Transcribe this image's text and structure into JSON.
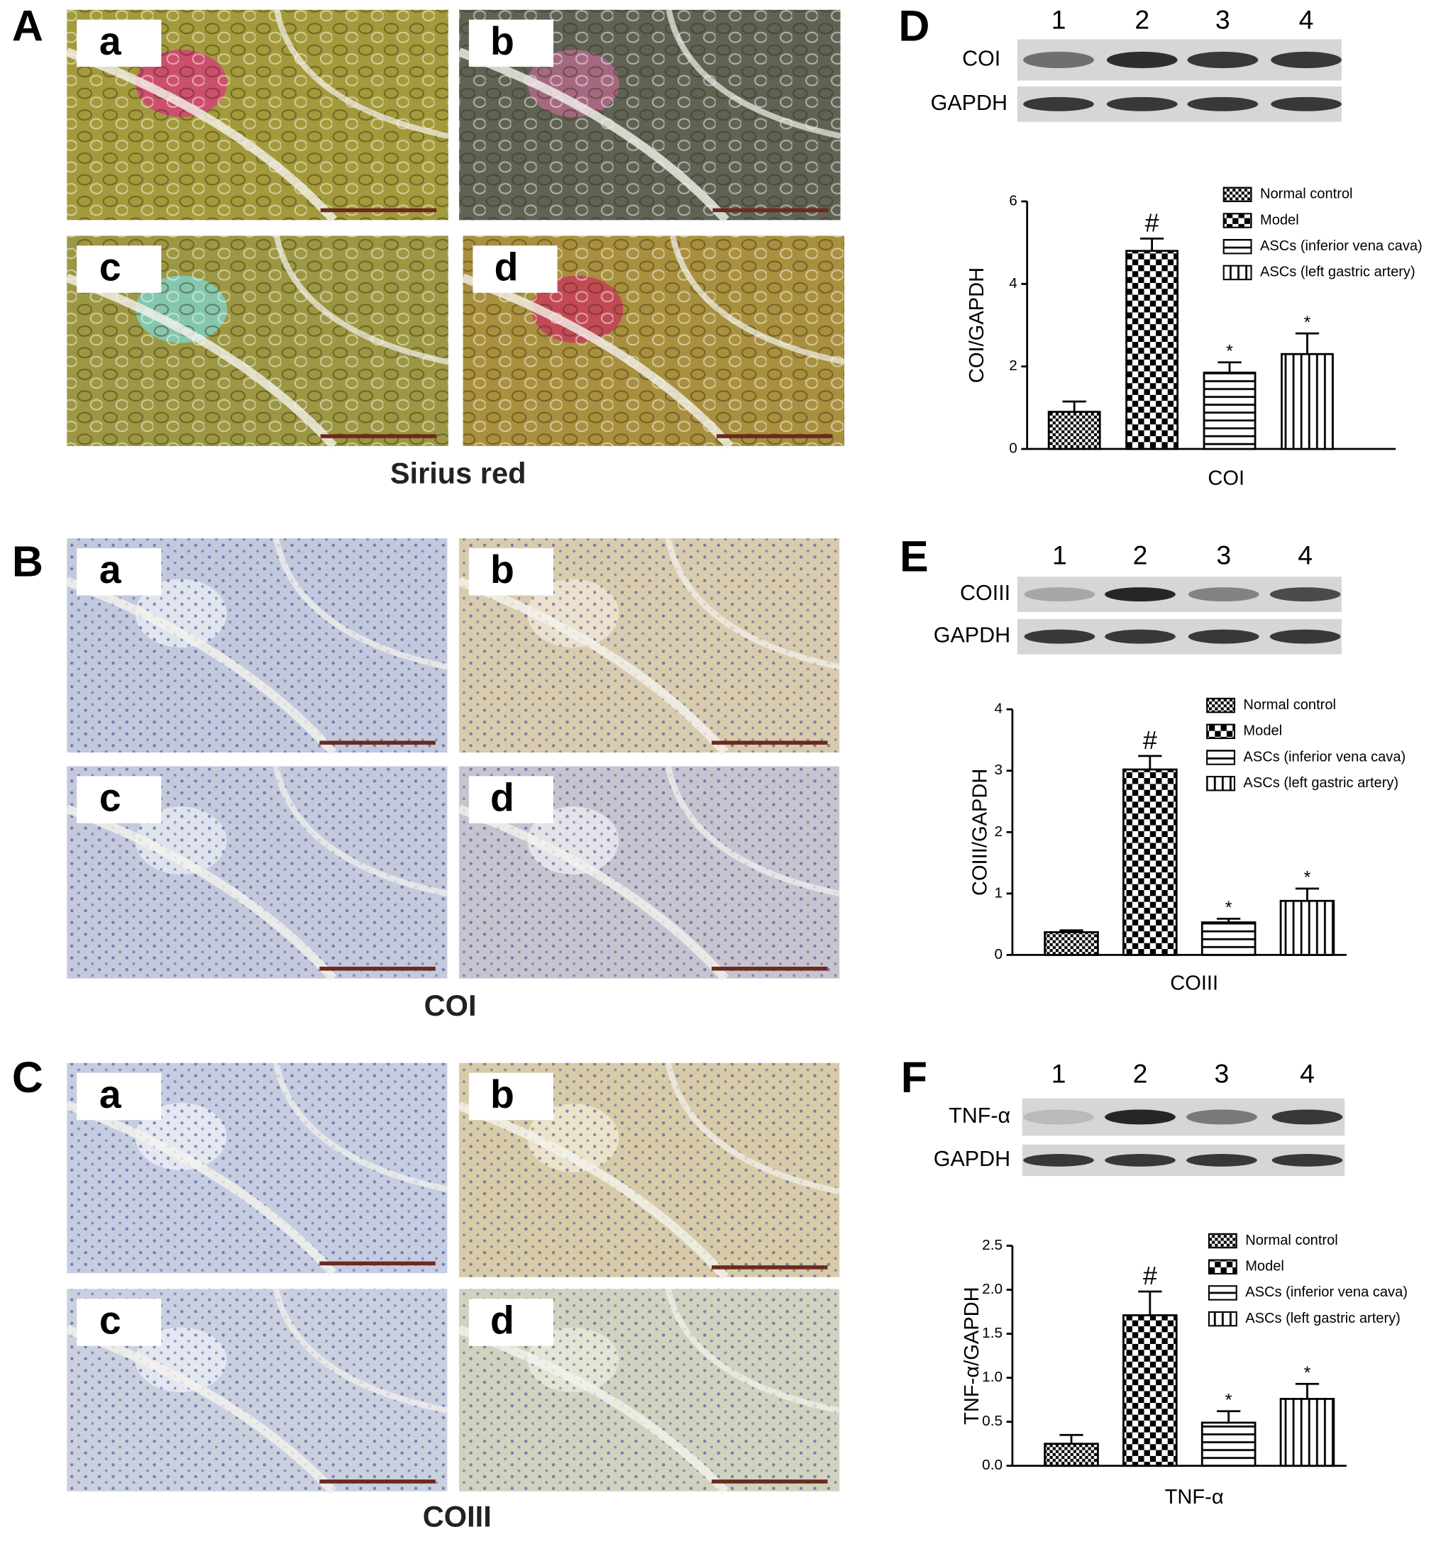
{
  "figure": {
    "panel_labels": [
      "A",
      "B",
      "C",
      "D",
      "E",
      "F"
    ],
    "histology": [
      {
        "caption": "Sirius red",
        "tiles": [
          "a",
          "b",
          "c",
          "d"
        ]
      },
      {
        "caption": "COI",
        "tiles": [
          "a",
          "b",
          "c",
          "d"
        ]
      },
      {
        "caption": "COIII",
        "tiles": [
          "a",
          "b",
          "c",
          "d"
        ]
      }
    ],
    "blots": [
      {
        "lanes": [
          "1",
          "2",
          "3",
          "4"
        ],
        "rows": [
          "COI",
          "GAPDH"
        ]
      },
      {
        "lanes": [
          "1",
          "2",
          "3",
          "4"
        ],
        "rows": [
          "COIII",
          "GAPDH"
        ]
      },
      {
        "lanes": [
          "1",
          "2",
          "3",
          "4"
        ],
        "rows": [
          "TNF-α",
          "GAPDH"
        ]
      }
    ]
  },
  "chart_data": [
    {
      "type": "bar",
      "y_label": "COI/GAPDH",
      "categories": [
        "COI"
      ],
      "ylim": [
        0,
        6
      ],
      "yticks": [
        0,
        2,
        4,
        6
      ],
      "legend": "upper right",
      "series": [
        {
          "name": "Normal control",
          "pattern": "fine-checker",
          "color": "#000000",
          "values": [
            0.9
          ],
          "errors": [
            0.25
          ],
          "annotations": [
            null
          ]
        },
        {
          "name": "Model",
          "pattern": "checker",
          "color": "#000000",
          "values": [
            4.8
          ],
          "errors": [
            0.3
          ],
          "annotations": [
            "#"
          ]
        },
        {
          "name": "ASCs (inferior vena cava)",
          "pattern": "horizontal",
          "color": "#000000",
          "values": [
            1.85
          ],
          "errors": [
            0.25
          ],
          "annotations": [
            "*"
          ]
        },
        {
          "name": "ASCs (left gastric artery)",
          "pattern": "vertical",
          "color": "#000000",
          "values": [
            2.3
          ],
          "errors": [
            0.5
          ],
          "annotations": [
            "*"
          ]
        }
      ]
    },
    {
      "type": "bar",
      "y_label": "COIII/GAPDH",
      "categories": [
        "COIII"
      ],
      "ylim": [
        0,
        4
      ],
      "yticks": [
        0,
        1,
        2,
        3,
        4
      ],
      "legend": "upper right",
      "series": [
        {
          "name": "Normal control",
          "pattern": "fine-checker",
          "color": "#000000",
          "values": [
            0.37
          ],
          "errors": [
            0.03
          ],
          "annotations": [
            null
          ]
        },
        {
          "name": "Model",
          "pattern": "checker",
          "color": "#000000",
          "values": [
            3.02
          ],
          "errors": [
            0.22
          ],
          "annotations": [
            "#"
          ]
        },
        {
          "name": "ASCs (inferior vena cava)",
          "pattern": "horizontal",
          "color": "#000000",
          "values": [
            0.53
          ],
          "errors": [
            0.06
          ],
          "annotations": [
            "*"
          ]
        },
        {
          "name": "ASCs (left gastric artery)",
          "pattern": "vertical",
          "color": "#000000",
          "values": [
            0.88
          ],
          "errors": [
            0.2
          ],
          "annotations": [
            "*"
          ]
        }
      ]
    },
    {
      "type": "bar",
      "y_label": "TNF-α/GAPDH",
      "categories": [
        "TNF-α"
      ],
      "ylim": [
        0,
        2.5
      ],
      "yticks": [
        {
          "value": 0,
          "label": "0.0"
        },
        0.5,
        {
          "value": 1,
          "label": "1.0"
        },
        1.5,
        {
          "value": 2,
          "label": "2.0"
        },
        2.5
      ],
      "legend": "upper right",
      "series": [
        {
          "name": "Normal control",
          "pattern": "fine-checker",
          "color": "#000000",
          "values": [
            0.25
          ],
          "errors": [
            0.1
          ],
          "annotations": [
            null
          ]
        },
        {
          "name": "Model",
          "pattern": "checker",
          "color": "#000000",
          "values": [
            1.71
          ],
          "errors": [
            0.27
          ],
          "annotations": [
            "#"
          ]
        },
        {
          "name": "ASCs (inferior vena cava)",
          "pattern": "horizontal",
          "color": "#000000",
          "values": [
            0.49
          ],
          "errors": [
            0.13
          ],
          "annotations": [
            "*"
          ]
        },
        {
          "name": "ASCs (left gastric artery)",
          "pattern": "vertical",
          "color": "#000000",
          "values": [
            0.76
          ],
          "errors": [
            0.17
          ],
          "annotations": [
            "*"
          ]
        }
      ]
    }
  ]
}
